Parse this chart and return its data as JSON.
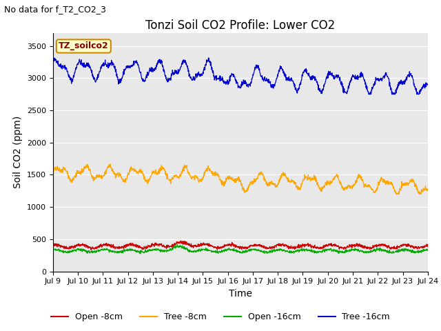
{
  "title": "Tonzi Soil CO2 Profile: Lower CO2",
  "subtitle": "No data for f_T2_CO2_3",
  "ylabel": "Soil CO2 (ppm)",
  "xlabel": "Time",
  "ylim": [
    0,
    3700
  ],
  "yticks": [
    0,
    500,
    1000,
    1500,
    2000,
    2500,
    3000,
    3500
  ],
  "xtick_labels": [
    "Jul 9",
    "Jul 10",
    "Jul 11",
    "Jul 12",
    "Jul 13",
    "Jul 14",
    "Jul 15",
    "Jul 16",
    "Jul 17",
    "Jul 18",
    "Jul 19",
    "Jul 20",
    "Jul 21",
    "Jul 22",
    "Jul 23",
    "Jul 24"
  ],
  "legend_entries": [
    "Open -8cm",
    "Tree -8cm",
    "Open -16cm",
    "Tree -16cm"
  ],
  "legend_colors": [
    "#cc0000",
    "#ffa500",
    "#00aa00",
    "#0000cc"
  ],
  "inset_label": "TZ_soilco2",
  "inset_bg": "#ffffcc",
  "inset_border": "#cc8800",
  "plot_bg": "#e8e8e8",
  "grid_color": "#ffffff",
  "title_fontsize": 12,
  "axis_label_fontsize": 10,
  "tick_label_fontsize": 8,
  "legend_fontsize": 9,
  "subtitle_fontsize": 9
}
